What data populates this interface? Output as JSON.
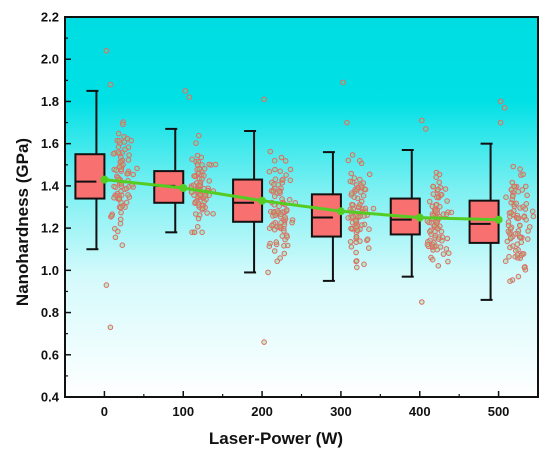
{
  "chart_data": {
    "type": "box",
    "xlabel": "Laser-Power (W)",
    "ylabel": "Nanohardness (GPa)",
    "categories": [
      "0",
      "100",
      "200",
      "300",
      "400",
      "500"
    ],
    "x": [
      0,
      100,
      200,
      300,
      400,
      500
    ],
    "ylim": [
      0.4,
      2.2
    ],
    "yticks": [
      0.4,
      0.6,
      0.8,
      1.0,
      1.2,
      1.4,
      1.6,
      1.8,
      2.0,
      2.2
    ],
    "ytick_labels": [
      "0.4",
      "0.6",
      "0.8",
      "1.0",
      "1.2",
      "1.4",
      "1.6",
      "1.8",
      "2.0",
      "2.2"
    ],
    "boxes": [
      {
        "category": "0",
        "whisker_low": 1.1,
        "q1": 1.34,
        "median": 1.42,
        "q3": 1.55,
        "whisker_high": 1.85
      },
      {
        "category": "100",
        "whisker_low": 1.18,
        "q1": 1.32,
        "median": 1.4,
        "q3": 1.47,
        "whisker_high": 1.67
      },
      {
        "category": "200",
        "whisker_low": 0.99,
        "q1": 1.23,
        "median": 1.32,
        "q3": 1.43,
        "whisker_high": 1.66
      },
      {
        "category": "300",
        "whisker_low": 0.95,
        "q1": 1.16,
        "median": 1.25,
        "q3": 1.36,
        "whisker_high": 1.56
      },
      {
        "category": "400",
        "whisker_low": 0.97,
        "q1": 1.17,
        "median": 1.24,
        "q3": 1.34,
        "whisker_high": 1.57
      },
      {
        "category": "500",
        "whisker_low": 0.86,
        "q1": 1.13,
        "median": 1.22,
        "q3": 1.33,
        "whisker_high": 1.6
      }
    ],
    "mean_line": {
      "x": [
        0,
        100,
        200,
        300,
        400,
        500
      ],
      "values": [
        1.43,
        1.39,
        1.33,
        1.28,
        1.25,
        1.24
      ]
    },
    "outliers": [
      {
        "category": "0",
        "values": [
          2.04,
          1.88,
          0.93,
          0.73
        ]
      },
      {
        "category": "100",
        "values": [
          1.85,
          1.82
        ]
      },
      {
        "category": "200",
        "values": [
          1.81,
          0.99,
          0.66
        ]
      },
      {
        "category": "300",
        "values": [
          1.89,
          1.7
        ]
      },
      {
        "category": "400",
        "values": [
          1.71,
          1.67,
          0.85
        ]
      },
      {
        "category": "500",
        "values": [
          1.8,
          1.77,
          1.7
        ]
      }
    ],
    "grid": false,
    "background": "gradient cyan (top) to white (bottom)",
    "colors": {
      "box_fill": "#f87070",
      "box_edge": "#111111",
      "mean_line": "#55cc22",
      "mean_marker": "#55cc22",
      "scatter_edge": "#e06a6a",
      "scatter_fill": "#8fd16e",
      "bg_top": "#00dde2",
      "bg_bottom": "#ffffff"
    }
  }
}
